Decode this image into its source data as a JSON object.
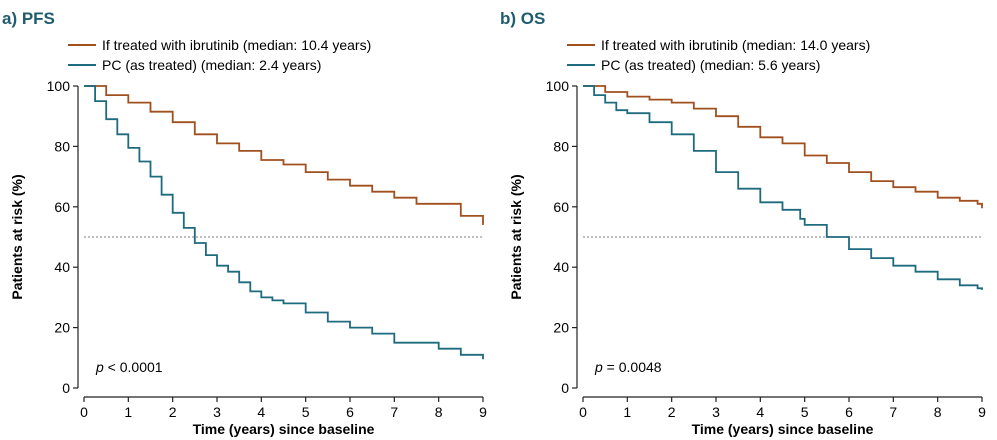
{
  "colors": {
    "ibrutinib": "#a0501e",
    "pc": "#1e6a7e",
    "reference": "#999999",
    "axis": "#222222",
    "title": "#1f5c6e"
  },
  "chart_data": [
    {
      "type": "line",
      "title": "a) PFS",
      "xlabel": "Time (years) since baseline",
      "ylabel": "Patients at risk (%)",
      "xlim": [
        0,
        9
      ],
      "ylim": [
        0,
        100
      ],
      "xticks": [
        "0",
        "1",
        "2",
        "3",
        "4",
        "5",
        "6",
        "7",
        "8",
        "9"
      ],
      "yticks": [
        "0",
        "20",
        "40",
        "60",
        "80",
        "100"
      ],
      "reference_line_y": 50,
      "legend_position": "top-left",
      "annotation": {
        "prefix": "p",
        "text": " < 0.0001"
      },
      "series": [
        {
          "name": "If treated with ibrutinib (median: 10.4 years)",
          "color_key": "ibrutinib",
          "x": [
            0,
            0.5,
            1,
            1.5,
            2,
            2.5,
            3,
            3.5,
            4,
            4.5,
            5,
            5.5,
            6,
            6.5,
            7,
            7.5,
            8,
            8.5,
            8.9,
            9
          ],
          "y": [
            100,
            97,
            94.5,
            91.5,
            88,
            84,
            81,
            78.5,
            75.5,
            74,
            71.5,
            69,
            67,
            65,
            63,
            61,
            61,
            57,
            57,
            54
          ]
        },
        {
          "name": "PC (as treated) (median: 2.4 years)",
          "color_key": "pc",
          "x": [
            0,
            0.25,
            0.5,
            0.75,
            1,
            1.25,
            1.5,
            1.75,
            2,
            2.25,
            2.5,
            2.75,
            3,
            3.25,
            3.5,
            3.75,
            4,
            4.25,
            4.5,
            5,
            5.5,
            6,
            6.5,
            7,
            7.5,
            8,
            8.5,
            8.9,
            9
          ],
          "y": [
            100,
            95,
            89,
            84,
            79.5,
            75,
            70,
            64,
            58,
            53,
            48,
            44,
            40.5,
            38.5,
            35,
            32,
            30,
            29,
            28,
            25,
            22,
            20,
            18,
            15,
            15,
            13,
            11,
            11,
            9.5
          ]
        }
      ]
    },
    {
      "type": "line",
      "title": "b) OS",
      "xlabel": "Time (years) since baseline",
      "ylabel": "Patients at risk (%)",
      "xlim": [
        0,
        9
      ],
      "ylim": [
        0,
        100
      ],
      "xticks": [
        "0",
        "1",
        "2",
        "3",
        "4",
        "5",
        "6",
        "7",
        "8",
        "9"
      ],
      "yticks": [
        "0",
        "20",
        "40",
        "60",
        "80",
        "100"
      ],
      "reference_line_y": 50,
      "legend_position": "top-left",
      "annotation": {
        "prefix": "p",
        "text": " = 0.0048"
      },
      "series": [
        {
          "name": "If treated with ibrutinib (median: 14.0 years)",
          "color_key": "ibrutinib",
          "x": [
            0,
            0.5,
            1,
            1.5,
            2,
            2.5,
            3,
            3.5,
            4,
            4.5,
            5,
            5.5,
            6,
            6.5,
            7,
            7.5,
            8,
            8.5,
            8.9,
            9
          ],
          "y": [
            100,
            98,
            96.5,
            95.5,
            94.5,
            92.5,
            90,
            86.5,
            83,
            81,
            77,
            74.5,
            71.5,
            68.5,
            66.5,
            65,
            63,
            62,
            61,
            59.5
          ]
        },
        {
          "name": "PC (as treated) (median: 5.6 years)",
          "color_key": "pc",
          "x": [
            0,
            0.25,
            0.5,
            0.75,
            1,
            1.5,
            2,
            2.5,
            3,
            3.5,
            4,
            4.5,
            4.9,
            5,
            5.5,
            6,
            6.5,
            7,
            7.5,
            8,
            8.5,
            8.9,
            9
          ],
          "y": [
            100,
            97,
            94.5,
            92,
            91,
            88,
            84,
            78.5,
            71.5,
            66,
            61.5,
            59,
            56,
            54,
            50,
            46,
            43,
            40.5,
            38.5,
            36,
            34,
            33,
            32.5
          ]
        }
      ]
    }
  ]
}
